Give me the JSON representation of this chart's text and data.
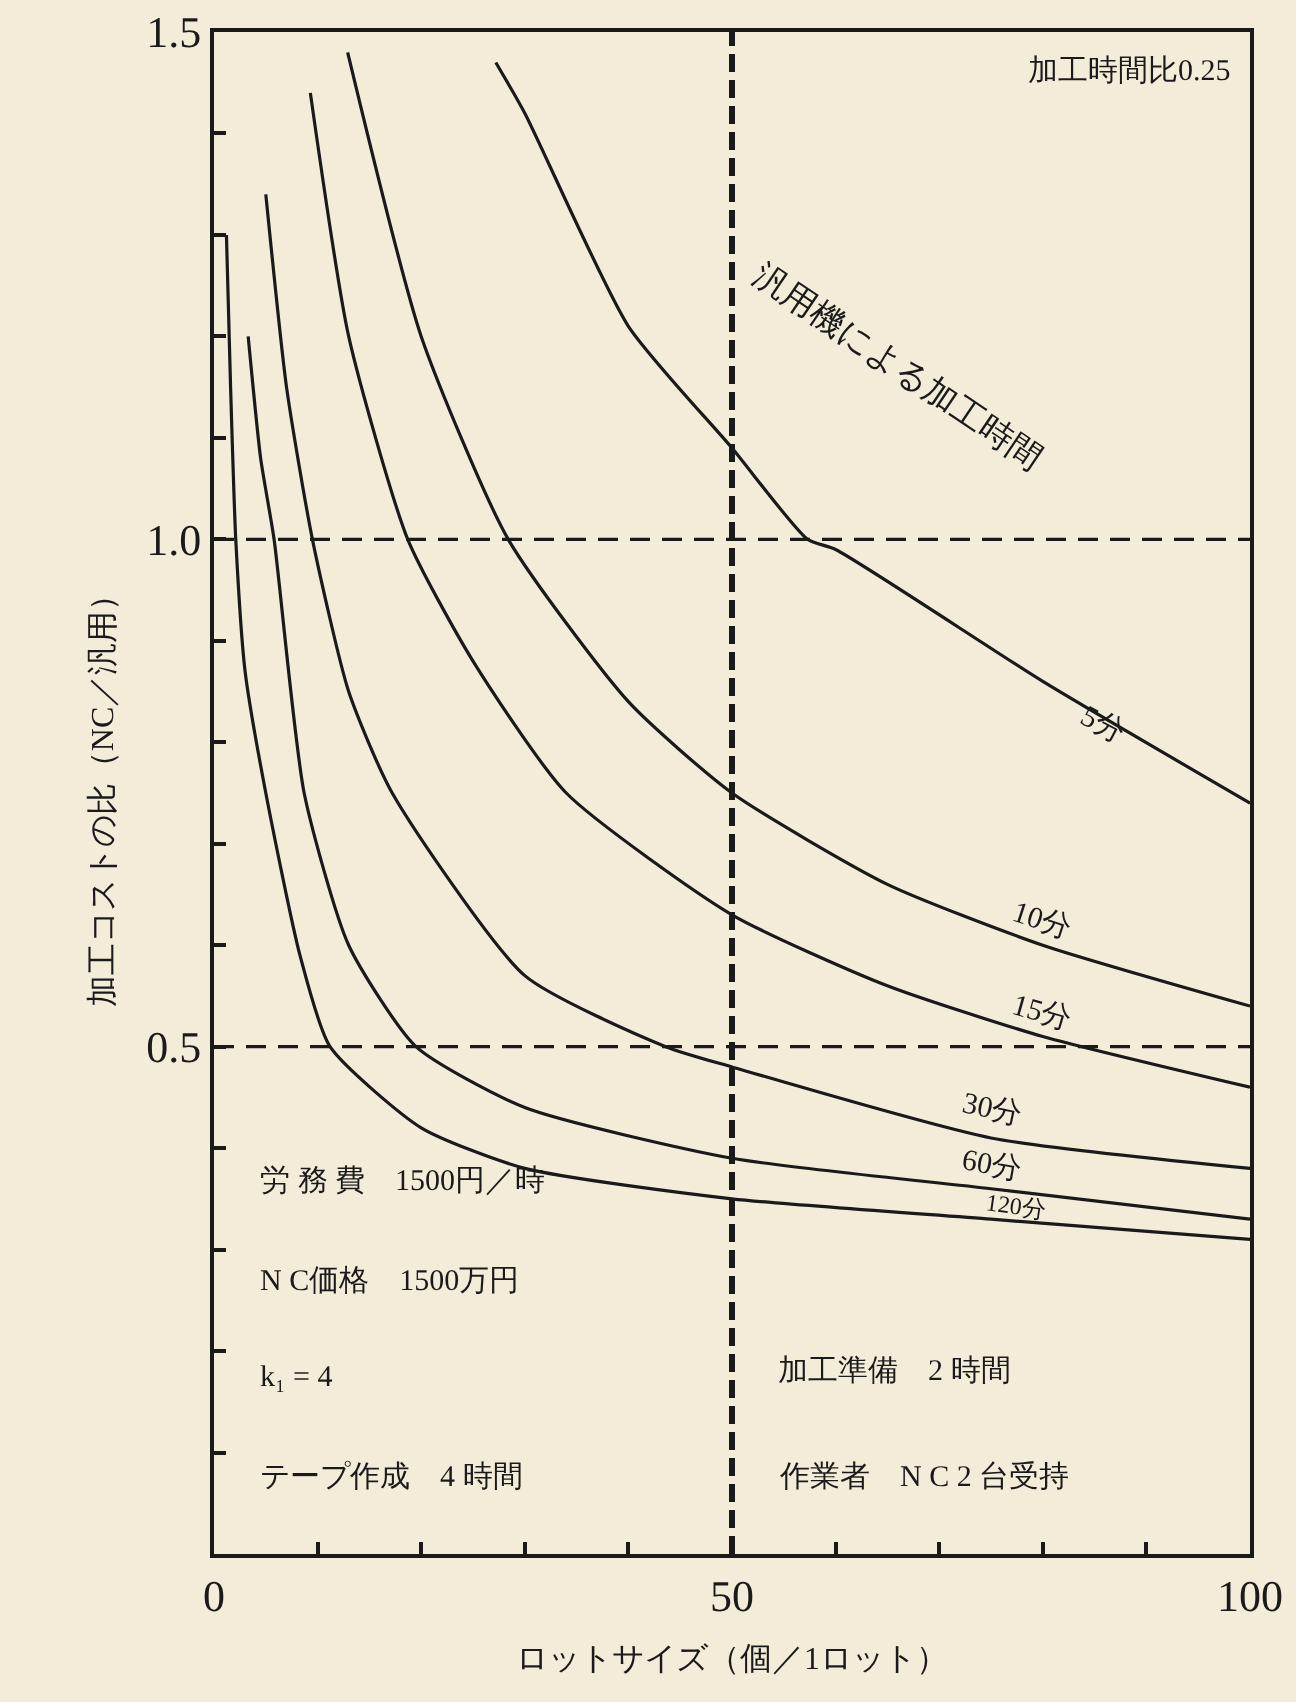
{
  "chart_data": {
    "type": "line",
    "xlabel": "ロットサイズ（個／1ロット）",
    "ylabel": "加工コストの比（NC／汎用）",
    "xlim": [
      0,
      100
    ],
    "ylim": [
      0,
      1.5
    ],
    "xticks": [
      0,
      {
        "value": 10,
        "label": null
      },
      {
        "value": 20,
        "label": null
      },
      {
        "value": 30,
        "label": null
      },
      {
        "value": 40,
        "label": null
      },
      50,
      {
        "value": 60,
        "label": null
      },
      {
        "value": 70,
        "label": null
      },
      {
        "value": 80,
        "label": null
      },
      {
        "value": 90,
        "label": null
      },
      100
    ],
    "yticks": [
      {
        "value": 0.1,
        "label": null
      },
      {
        "value": 0.2,
        "label": null
      },
      {
        "value": 0.3,
        "label": null
      },
      {
        "value": 0.4,
        "label": null
      },
      {
        "value": 0.5,
        "label": "0.5"
      },
      {
        "value": 0.6,
        "label": null
      },
      {
        "value": 0.7,
        "label": null
      },
      {
        "value": 0.8,
        "label": null
      },
      {
        "value": 0.9,
        "label": null
      },
      {
        "value": 1.0,
        "label": "1.0"
      },
      {
        "value": 1.1,
        "label": null
      },
      {
        "value": 1.2,
        "label": null
      },
      {
        "value": 1.3,
        "label": null
      },
      {
        "value": 1.4,
        "label": null
      },
      {
        "value": 1.5,
        "label": "1.5"
      }
    ],
    "grid": false,
    "legend": false,
    "marker": "none",
    "line_style": "solid",
    "series": [
      {
        "name": "5分",
        "color": "#1a1a1a",
        "x": [
          27.2,
          30,
          40,
          50,
          57.3,
          60,
          80,
          100
        ],
        "values": [
          1.47,
          1.42,
          1.21,
          1.09,
          1.0,
          0.99,
          0.86,
          0.74
        ]
      },
      {
        "name": "10分",
        "color": "#1a1a1a",
        "x": [
          12.9,
          20,
          28.4,
          40,
          50,
          65,
          80,
          100
        ],
        "values": [
          1.48,
          1.2,
          1.0,
          0.84,
          0.75,
          0.66,
          0.6,
          0.54
        ]
      },
      {
        "name": "15分",
        "color": "#1a1a1a",
        "x": [
          9.3,
          13,
          18.7,
          25,
          34,
          50,
          65,
          80,
          100
        ],
        "values": [
          1.44,
          1.2,
          1.0,
          0.88,
          0.75,
          0.63,
          0.56,
          0.51,
          0.46
        ]
      },
      {
        "name": "30分",
        "color": "#1a1a1a",
        "x": [
          5,
          7,
          9.5,
          13,
          17.2,
          30,
          43.6,
          50,
          75,
          100
        ],
        "values": [
          1.34,
          1.15,
          1.0,
          0.85,
          0.75,
          0.57,
          0.5,
          0.48,
          0.41,
          0.38
        ]
      },
      {
        "name": "60分",
        "color": "#1a1a1a",
        "x": [
          3.3,
          4.5,
          5.8,
          8.7,
          13,
          19.5,
          30,
          50,
          75,
          100
        ],
        "values": [
          1.2,
          1.08,
          1.0,
          0.75,
          0.6,
          0.5,
          0.44,
          0.39,
          0.36,
          0.33
        ]
      },
      {
        "name": "120分",
        "color": "#1a1a1a",
        "x": [
          1.2,
          1.6,
          2.1,
          3,
          5,
          8.3,
          11.2,
          20,
          30,
          50,
          75,
          100
        ],
        "values": [
          1.3,
          1.15,
          1.0,
          0.87,
          0.75,
          0.59,
          0.5,
          0.42,
          0.38,
          0.35,
          0.33,
          0.31
        ]
      }
    ],
    "ref_lines": [
      {
        "axis": "y",
        "value": 1.0,
        "color": "#1a1a1a",
        "line_style": "dashed"
      },
      {
        "axis": "y",
        "value": 0.5,
        "color": "#1a1a1a",
        "line_style": "dashed"
      },
      {
        "axis": "x",
        "value": 50,
        "color": "#1a1a1a",
        "line_style": "dashed"
      }
    ],
    "annotations": [
      "加工時間比0.25",
      "汎用機による加工時間",
      "労 務 費　1500円／時",
      "N C価格　1500万円",
      "k₁ = 4",
      "テープ作成　4 時間",
      "加工準備　2 時間",
      "作業者　N C 2 台受持"
    ]
  }
}
